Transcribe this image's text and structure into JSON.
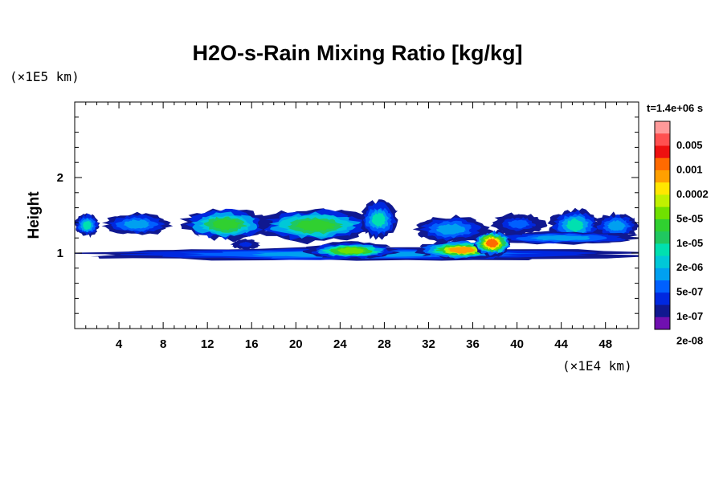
{
  "chart_data": {
    "type": "heatmap",
    "title": "H2O-s-Rain Mixing Ratio [kg/kg]",
    "xlabel": "",
    "ylabel": "Height",
    "x_unit": "(×1E4 km)",
    "y_unit": "(×1E5 km)",
    "time_label": "t=1.4e+06 s",
    "xlim": [
      0,
      51
    ],
    "ylim": [
      0,
      3
    ],
    "x_ticks": [
      "4",
      "8",
      "12",
      "16",
      "20",
      "24",
      "28",
      "32",
      "36",
      "40",
      "44",
      "48"
    ],
    "y_ticks": [
      "1",
      "2"
    ],
    "colorbar": {
      "labels": [
        "0.005",
        "0.001",
        "0.0002",
        "5e-05",
        "1e-05",
        "2e-06",
        "5e-07",
        "1e-07",
        "2e-08"
      ],
      "colors": [
        "#ff9a9a",
        "#ff5050",
        "#ee1010",
        "#ff6a00",
        "#ffa000",
        "#ffe600",
        "#c0f000",
        "#70e000",
        "#30d030",
        "#20c860",
        "#00e0b0",
        "#00c8d8",
        "#00a0f0",
        "#0060ff",
        "#0028e0",
        "#101890",
        "#7010b0"
      ]
    },
    "cloud_layers": [
      {
        "name": "upper",
        "y_center": 1.35,
        "segments": [
          {
            "x": [
              0.0,
              2.2
            ],
            "y": [
              1.22,
              1.52
            ],
            "peak": 0.6
          },
          {
            "x": [
              2.7,
              8.6
            ],
            "y": [
              1.24,
              1.52
            ],
            "peak": 0.55
          },
          {
            "x": [
              9.8,
              17.5
            ],
            "y": [
              1.18,
              1.58
            ],
            "peak": 0.7
          },
          {
            "x": [
              16.5,
              27.0
            ],
            "y": [
              1.15,
              1.58
            ],
            "peak": 0.7
          },
          {
            "x": [
              25.8,
              29.2
            ],
            "y": [
              1.2,
              1.68
            ],
            "peak": 0.6
          },
          {
            "x": [
              30.8,
              37.2
            ],
            "y": [
              1.15,
              1.48
            ],
            "peak": 0.5
          },
          {
            "x": [
              37.8,
              42.5
            ],
            "y": [
              1.25,
              1.52
            ],
            "peak": 0.45
          },
          {
            "x": [
              43.0,
              47.5
            ],
            "y": [
              1.15,
              1.58
            ],
            "peak": 0.6
          },
          {
            "x": [
              47.0,
              51.0
            ],
            "y": [
              1.2,
              1.52
            ],
            "peak": 0.5
          },
          {
            "x": [
              37.2,
              51.0
            ],
            "y": [
              1.12,
              1.28
            ],
            "peak": 0.55
          }
        ]
      },
      {
        "name": "lower",
        "y_center": 1.0,
        "segments": [
          {
            "x": [
              0.0,
              51.0
            ],
            "y": [
              0.9,
              1.07
            ],
            "peak": 0.55
          },
          {
            "x": [
              21.0,
              29.0
            ],
            "y": [
              0.92,
              1.14
            ],
            "peak": 0.78
          },
          {
            "x": [
              31.0,
              39.0
            ],
            "y": [
              0.92,
              1.16
            ],
            "peak": 0.82
          },
          {
            "x": [
              36.0,
              39.5
            ],
            "y": [
              0.96,
              1.3
            ],
            "peak": 0.88
          },
          {
            "x": [
              14.2,
              16.7
            ],
            "y": [
              1.05,
              1.18
            ],
            "peak": 0.4
          }
        ]
      }
    ]
  }
}
